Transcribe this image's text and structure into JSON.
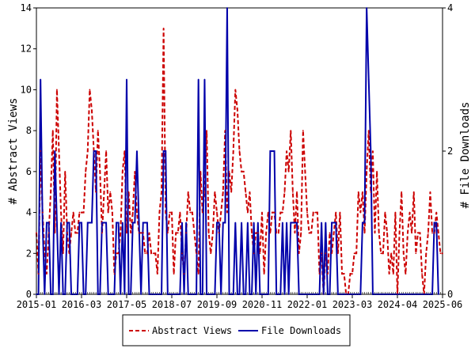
{
  "chart_data": {
    "type": "line",
    "title": "",
    "ylabel": "# Abstract Views",
    "y2label": "# File Downloads",
    "ylim": [
      0,
      14
    ],
    "y2lim": [
      0,
      4
    ],
    "yticks": [
      "0",
      "2",
      "4",
      "6",
      "8",
      "10",
      "12",
      "14"
    ],
    "y2ticks": [
      "0",
      "2",
      "4"
    ],
    "xtick_labels": [
      "2015-01",
      "2016-03",
      "2017-05",
      "2018-07",
      "2019-09",
      "2020-11",
      "2022-01",
      "2023-03",
      "2024-04",
      "2025-06"
    ],
    "xrange": [
      "2015-01",
      "2025-06"
    ],
    "grid": false,
    "legend_position": "bottom-center",
    "series": [
      {
        "name": "Abstract Views",
        "axis": "left",
        "color": "#cc0000",
        "style": "dashed",
        "values": [
          3,
          1,
          7,
          4,
          2,
          1,
          3,
          5,
          8,
          3,
          10,
          7,
          4,
          2,
          6,
          3,
          2,
          3,
          4,
          3,
          3,
          4,
          4,
          4,
          6,
          7,
          10,
          9,
          7,
          5,
          8,
          6,
          3,
          5,
          7,
          4,
          5,
          4,
          1,
          2,
          2,
          3,
          6,
          7,
          3,
          5,
          3,
          4,
          6,
          4,
          3,
          3,
          3,
          2,
          2,
          3,
          2,
          2,
          2,
          1,
          4,
          5,
          13,
          4,
          3,
          4,
          4,
          1,
          3,
          3,
          4,
          2,
          1,
          3,
          5,
          4,
          4,
          3,
          2,
          1,
          6,
          4,
          5,
          8,
          3,
          2,
          3,
          5,
          4,
          3,
          4,
          5,
          8,
          4,
          6,
          5,
          7,
          10,
          9,
          7,
          6,
          6,
          5,
          4,
          5,
          3,
          2,
          3,
          3,
          2,
          4,
          1,
          3,
          4,
          3,
          4,
          4,
          3,
          3,
          4,
          4,
          5,
          7,
          6,
          8,
          5,
          3,
          5,
          2,
          3,
          8,
          6,
          4,
          3,
          3,
          4,
          4,
          4,
          1,
          2,
          0,
          2,
          1,
          3,
          2,
          3,
          4,
          2,
          4,
          1,
          1,
          0,
          0,
          1,
          1,
          2,
          2,
          5,
          4,
          5,
          3,
          6,
          8,
          5,
          7,
          3,
          6,
          3,
          2,
          2,
          4,
          3,
          1,
          2,
          1,
          4,
          0,
          3,
          5,
          2,
          1,
          3,
          4,
          3,
          5,
          2,
          3,
          3,
          1,
          0,
          2,
          3,
          5,
          3,
          3,
          4,
          3,
          2,
          2
        ]
      },
      {
        "name": "File Downloads",
        "axis": "right",
        "color": "#0000aa",
        "style": "solid",
        "values": [
          0,
          0,
          3,
          1,
          0,
          1,
          1,
          0,
          0,
          2,
          1,
          0,
          1,
          0,
          0,
          1,
          1,
          0,
          0,
          0,
          0,
          1,
          1,
          0,
          0,
          1,
          1,
          1,
          2,
          2,
          0,
          0,
          1,
          1,
          1,
          0,
          0,
          0,
          0,
          1,
          1,
          0,
          1,
          0,
          3,
          0,
          0,
          1,
          1,
          2,
          1,
          0,
          1,
          1,
          1,
          0,
          0,
          0,
          0,
          0,
          0,
          0,
          2,
          2,
          0,
          0,
          0,
          0,
          0,
          0,
          0,
          1,
          0,
          1,
          0,
          0,
          0,
          0,
          0,
          3,
          0,
          0,
          3,
          0,
          0,
          0,
          0,
          0,
          1,
          1,
          0,
          1,
          1,
          4,
          0,
          0,
          0,
          1,
          0,
          0,
          1,
          0,
          0,
          1,
          0,
          0,
          1,
          0,
          1,
          0,
          0,
          0,
          0,
          0,
          2,
          2,
          2,
          0,
          0,
          0,
          1,
          0,
          1,
          0,
          1,
          1,
          1,
          1,
          0,
          0,
          0,
          0,
          0,
          0,
          0,
          0,
          0,
          0,
          0,
          1,
          0,
          1,
          0,
          0,
          1,
          1,
          1,
          0,
          0,
          0,
          0,
          0,
          0,
          0,
          0,
          0,
          0,
          0,
          0,
          1,
          1,
          4,
          3,
          2,
          0,
          0,
          0,
          0,
          0,
          0,
          0,
          0,
          0,
          0,
          0,
          0,
          0,
          0,
          0,
          0,
          0,
          0,
          0,
          0,
          0,
          0,
          0,
          0,
          0,
          0,
          0,
          0,
          0,
          0,
          1,
          1,
          0
        ]
      }
    ]
  }
}
